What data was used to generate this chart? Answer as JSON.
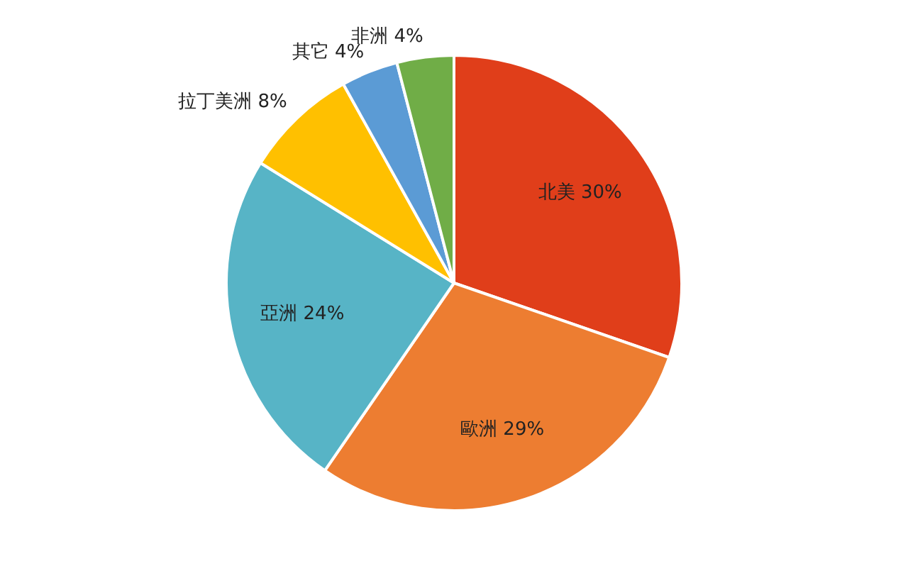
{
  "chart_data": {
    "type": "pie",
    "categories": [
      "北美",
      "歐洲",
      "亞洲",
      "拉丁美洲",
      "其它",
      "非洲"
    ],
    "values": [
      30,
      29,
      24,
      8,
      4,
      4
    ],
    "value_labels": [
      "30%",
      "29%",
      "24%",
      "8%",
      "4%",
      "4%"
    ],
    "colors": [
      "#e03e1a",
      "#ed7d31",
      "#57b4c6",
      "#ffc000",
      "#5b9bd5",
      "#70ad47"
    ],
    "legend": false
  }
}
